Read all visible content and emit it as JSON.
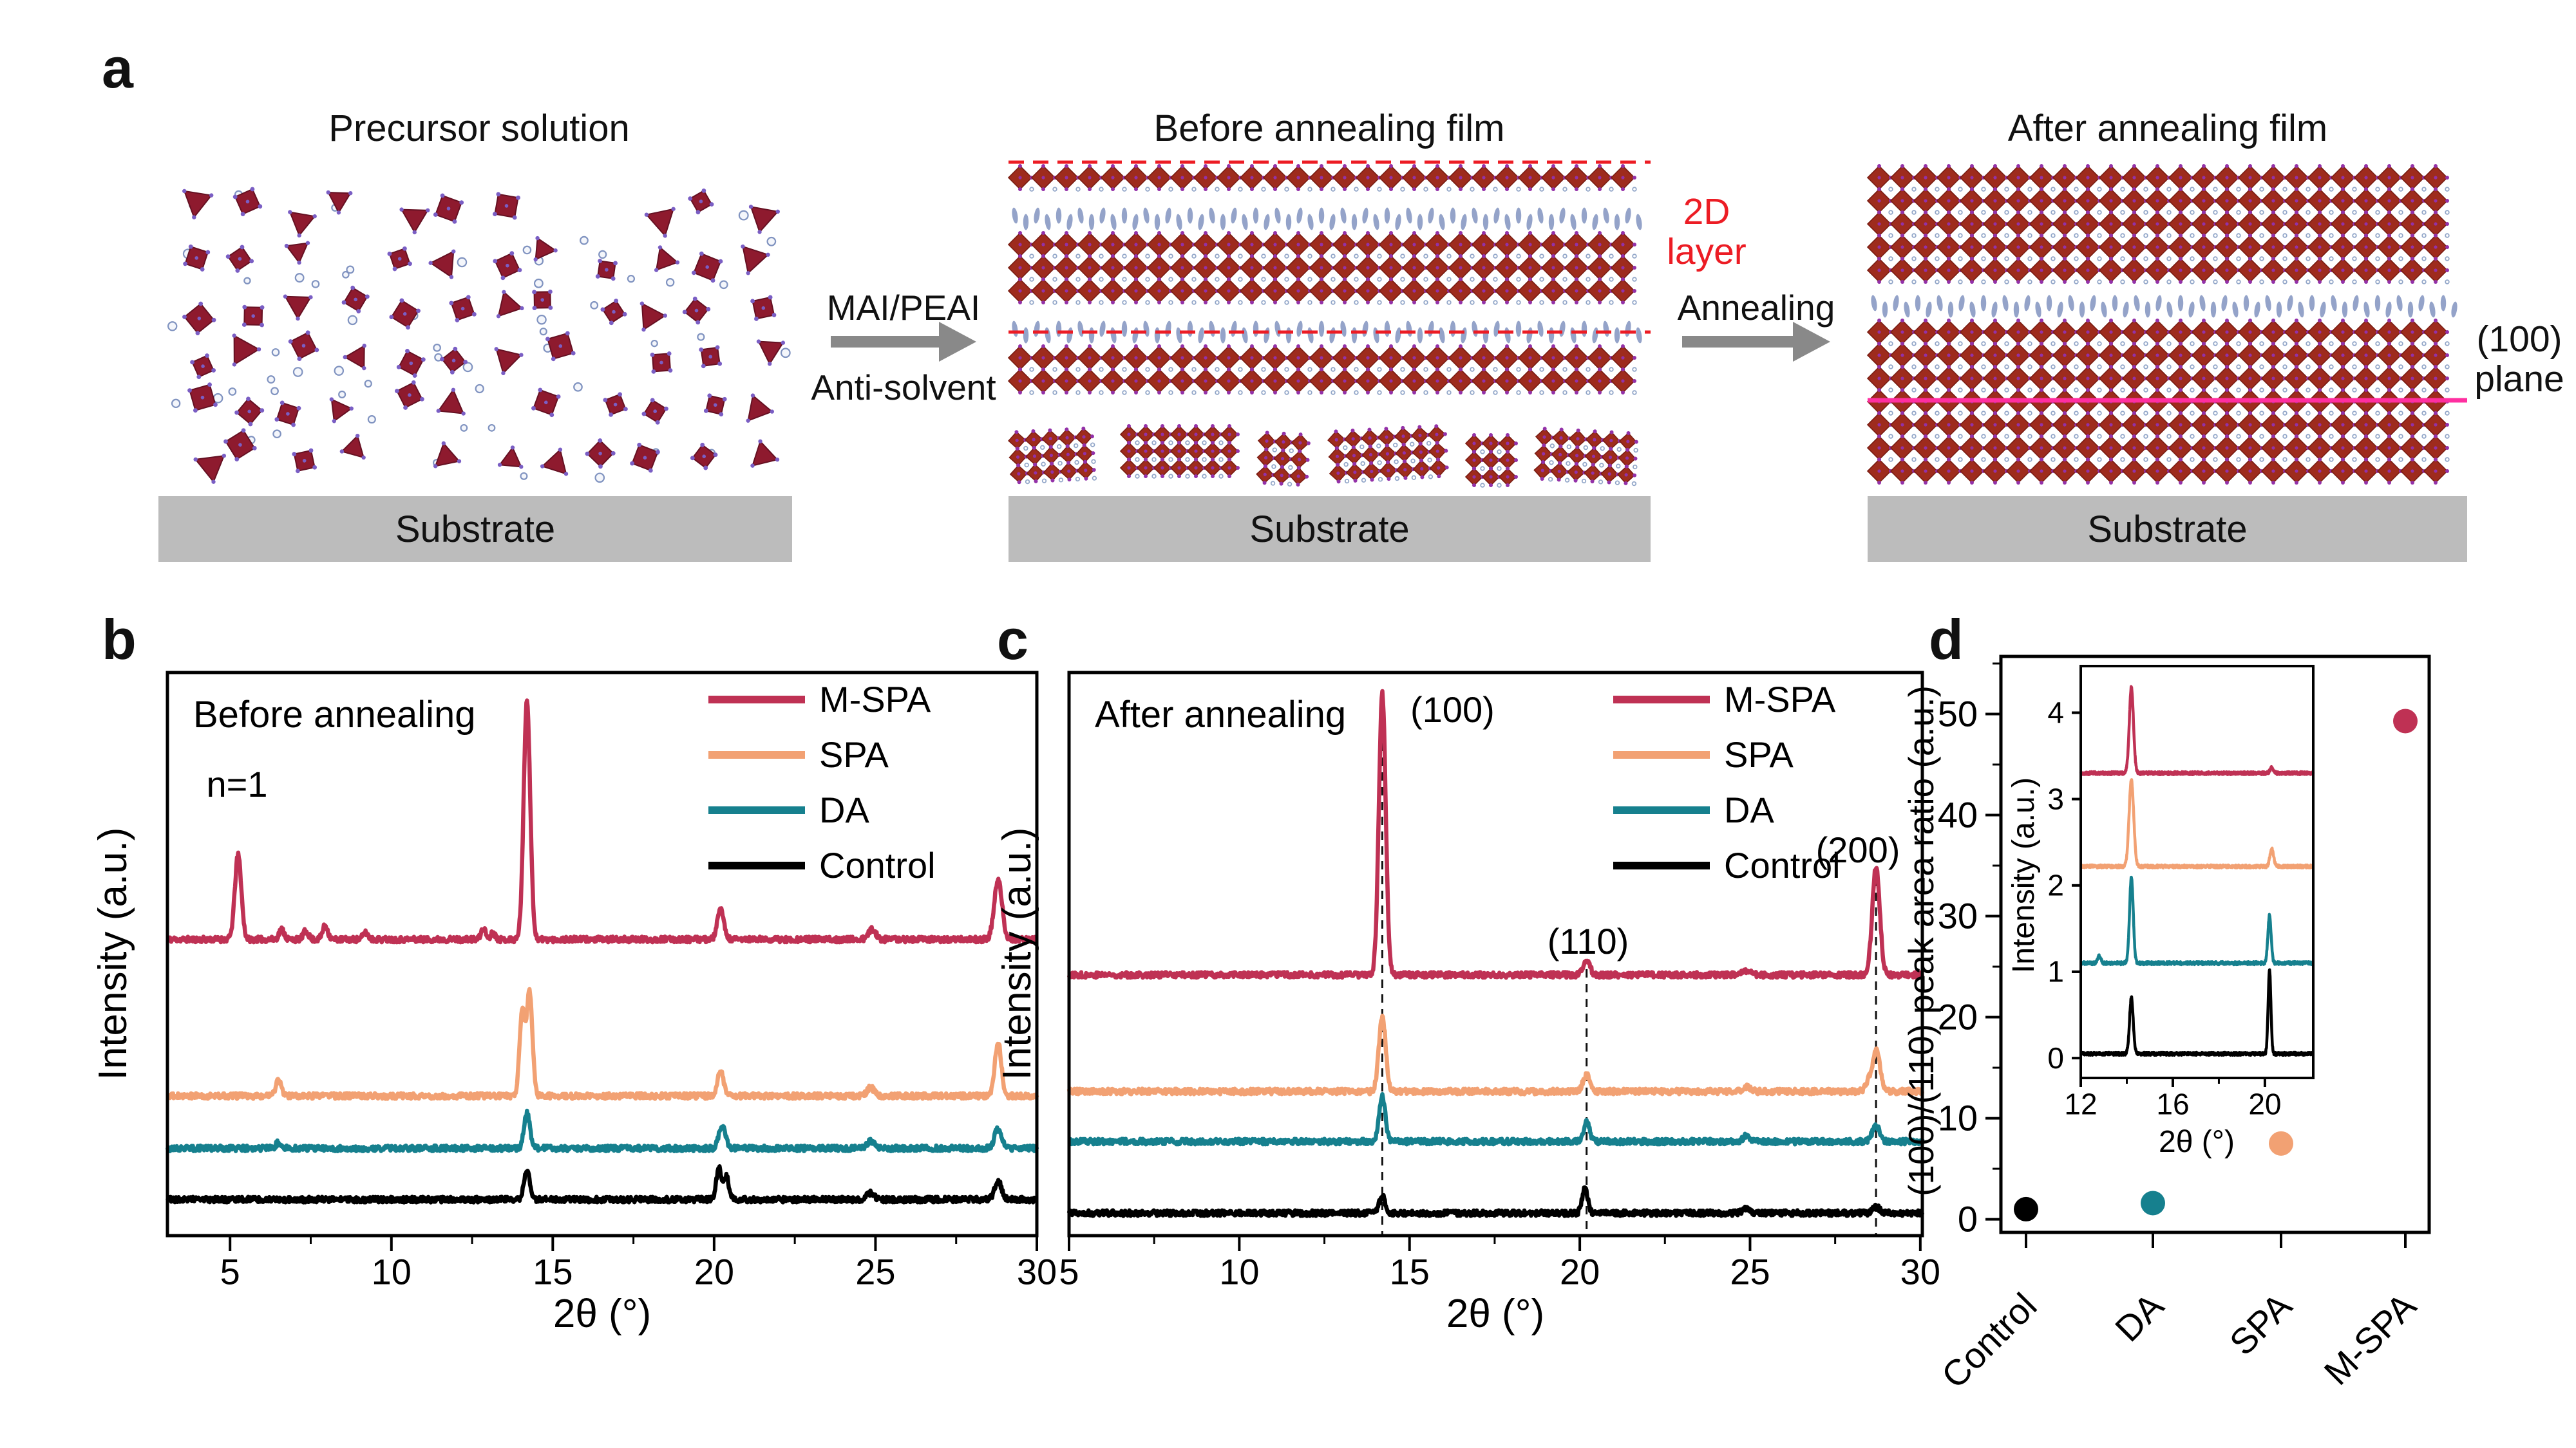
{
  "panels": {
    "a": {
      "label": "a",
      "precursor_title": "Precursor solution",
      "before_title": "Before annealing film",
      "after_title": "After annealing film",
      "substrate_label": "Substrate",
      "arrow1_top": "MAI/PEAI",
      "arrow1_bottom": "Anti-solvent",
      "arrow2_label": "Annealing",
      "layer_label": [
        "2D",
        "layer"
      ],
      "plane_label": [
        "(100)",
        "plane"
      ],
      "colors": {
        "octahedra": "#9e2b1d",
        "octahedra_stroke": "#7a1d12",
        "precursor_octahedra": "#8e1a2e",
        "precursor_octahedra_stroke": "#651022",
        "vertex_dot": "#9331a8",
        "precursor_dot": "#7a5ec4",
        "gap_circle": "#93a7c9",
        "spacer_ellipse": "#94a3c9",
        "solvent_circle_stroke": "#8093c0",
        "solvent_circle_fill": "#f4f6fb",
        "dashed_line": "#ec1c24",
        "plane_line": "#ff2fa0",
        "substrate": "#bcbcbc",
        "arrow": "#898989",
        "layer_label_color": "#ec1c24"
      }
    },
    "b": {
      "label": "b"
    },
    "c": {
      "label": "c"
    },
    "d": {
      "label": "d"
    }
  },
  "chart_data": [
    {
      "id": "xrd-before",
      "type": "line",
      "title": "Before annealing",
      "xlabel": "2θ (°)",
      "ylabel": "Intensity (a.u.)",
      "xlim": [
        3.06,
        30
      ],
      "ylim": [
        0,
        1000
      ],
      "xticks": [
        5,
        10,
        15,
        20,
        25,
        30
      ],
      "xminor": [
        7.5,
        12.5,
        17.5,
        22.5,
        27.5
      ],
      "grid": false,
      "legend_position": "top-right",
      "annotations": [
        {
          "text": "n=1",
          "x": 5.25
        }
      ],
      "series": [
        {
          "name": "M-SPA",
          "color": "#bf3154",
          "baseline": 526,
          "peaks": [
            [
              5.25,
              150,
              0.1
            ],
            [
              6.6,
              18,
              0.08
            ],
            [
              7.35,
              15,
              0.08
            ],
            [
              7.95,
              25,
              0.08
            ],
            [
              9.2,
              12,
              0.08
            ],
            [
              12.85,
              20,
              0.07
            ],
            [
              13.15,
              12,
              0.07
            ],
            [
              14.2,
              425,
              0.1
            ],
            [
              20.2,
              52,
              0.1
            ],
            [
              24.9,
              18,
              0.11
            ],
            [
              28.8,
              105,
              0.12
            ]
          ]
        },
        {
          "name": "SPA",
          "color": "#f2a173",
          "baseline": 248,
          "peaks": [
            [
              6.5,
              30,
              0.08
            ],
            [
              14.05,
              150,
              0.08
            ],
            [
              14.28,
              185,
              0.09
            ],
            [
              20.2,
              42,
              0.1
            ],
            [
              24.85,
              15,
              0.11
            ],
            [
              28.8,
              95,
              0.1
            ]
          ]
        },
        {
          "name": "DA",
          "color": "#16808e",
          "baseline": 155,
          "peaks": [
            [
              6.5,
              10,
              0.08
            ],
            [
              14.2,
              62,
              0.09
            ],
            [
              20.25,
              42,
              0.1
            ],
            [
              24.85,
              13,
              0.11
            ],
            [
              28.8,
              35,
              0.11
            ]
          ]
        },
        {
          "name": "Control",
          "color": "#000000",
          "baseline": 64,
          "peaks": [
            [
              14.2,
              52,
              0.09
            ],
            [
              20.15,
              55,
              0.08
            ],
            [
              20.38,
              40,
              0.08
            ],
            [
              24.85,
              12,
              0.11
            ],
            [
              28.8,
              32,
              0.11
            ]
          ]
        }
      ]
    },
    {
      "id": "xrd-after",
      "type": "line",
      "title": "After annealing",
      "xlabel": "2θ (°)",
      "ylabel": "Intensity (a.u.)",
      "xlim": [
        5,
        30.06
      ],
      "ylim": [
        0,
        1000
      ],
      "xticks": [
        5,
        10,
        15,
        20,
        25,
        30
      ],
      "xminor": [
        7.5,
        12.5,
        17.5,
        22.5,
        27.5
      ],
      "grid": false,
      "legend_position": "top-right",
      "dashed_lines": [
        14.2,
        20.2,
        28.7
      ],
      "annotations": [
        {
          "text": "(100)",
          "x": 14.2
        },
        {
          "text": "(110)",
          "x": 20.2
        },
        {
          "text": "(200)",
          "x": 28.7
        }
      ],
      "series": [
        {
          "name": "M-SPA",
          "color": "#bf3154",
          "baseline": 463,
          "peaks": [
            [
              14.2,
              500,
              0.1
            ],
            [
              20.2,
              25,
              0.1
            ],
            [
              24.9,
              8,
              0.11
            ],
            [
              28.7,
              193,
              0.11
            ]
          ]
        },
        {
          "name": "SPA",
          "color": "#f2a173",
          "baseline": 256,
          "peaks": [
            [
              14.2,
              133,
              0.1
            ],
            [
              20.2,
              30,
              0.1
            ],
            [
              24.9,
              8,
              0.11
            ],
            [
              28.5,
              20,
              0.1
            ],
            [
              28.72,
              74,
              0.1
            ]
          ]
        },
        {
          "name": "DA",
          "color": "#16808e",
          "baseline": 167,
          "peaks": [
            [
              14.2,
              80,
              0.09
            ],
            [
              20.2,
              35,
              0.09
            ],
            [
              24.9,
              10,
              0.11
            ],
            [
              28.7,
              28,
              0.11
            ]
          ]
        },
        {
          "name": "Control",
          "color": "#000000",
          "baseline": 40,
          "peaks": [
            [
              14.2,
              30,
              0.09
            ],
            [
              20.15,
              45,
              0.08
            ],
            [
              24.9,
              8,
              0.11
            ],
            [
              28.7,
              12,
              0.09
            ]
          ]
        }
      ]
    },
    {
      "id": "peak-area-ratio",
      "type": "scatter",
      "ylabel": "(100)/(110) peak area ratio (a.u.)",
      "categories": [
        "Control",
        "DA",
        "SPA",
        "M-SPA"
      ],
      "values": [
        1.0,
        1.6,
        7.5,
        49.3
      ],
      "colors": [
        "#000000",
        "#16808e",
        "#f2a173",
        "#bf3154"
      ],
      "ylim": [
        -1.3,
        55.7
      ],
      "yticks": [
        0,
        10,
        20,
        30,
        40,
        50
      ],
      "yminor": [
        5,
        15,
        25,
        35,
        45,
        55
      ],
      "grid": false
    },
    {
      "id": "xrd-inset",
      "type": "line",
      "xlabel": "2θ (°)",
      "ylabel": "Intensity (a.u.)",
      "xlim": [
        12,
        22.1
      ],
      "ylim": [
        -0.23,
        4.54
      ],
      "xticks": [
        12,
        16,
        20
      ],
      "xminor": [
        14,
        18
      ],
      "yticks": [
        0,
        1,
        2,
        3,
        4
      ],
      "grid": false,
      "series": [
        {
          "name": "M-SPA",
          "color": "#bf3154",
          "baseline": 3.3,
          "peaks": [
            [
              14.2,
              1.0,
              0.09
            ],
            [
              20.3,
              0.06,
              0.08
            ]
          ]
        },
        {
          "name": "SPA",
          "color": "#f2a173",
          "baseline": 2.22,
          "peaks": [
            [
              14.2,
              1.0,
              0.1
            ],
            [
              20.3,
              0.2,
              0.08
            ]
          ]
        },
        {
          "name": "DA",
          "color": "#16808e",
          "baseline": 1.1,
          "peaks": [
            [
              12.8,
              0.08,
              0.07
            ],
            [
              14.2,
              1.0,
              0.08
            ],
            [
              20.2,
              0.55,
              0.07
            ]
          ]
        },
        {
          "name": "Control",
          "color": "#000000",
          "baseline": 0.05,
          "peaks": [
            [
              14.2,
              0.65,
              0.08
            ],
            [
              20.2,
              0.97,
              0.06
            ]
          ]
        }
      ]
    }
  ]
}
